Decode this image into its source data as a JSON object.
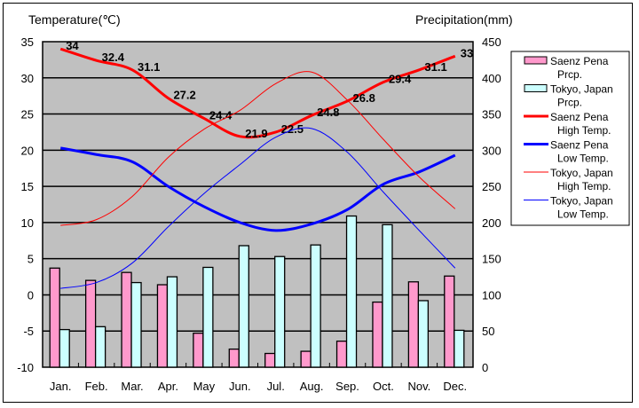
{
  "chart_data": {
    "type": "bar+line",
    "title": "",
    "left_axis_label": "Temperature(℃)",
    "right_axis_label": "Precipitation(mm)",
    "categories": [
      "Jan.",
      "Feb.",
      "Mar.",
      "Apr.",
      "May",
      "Jun.",
      "Jul.",
      "Aug.",
      "Sep.",
      "Oct.",
      "Nov.",
      "Dec."
    ],
    "left_ylim": [
      -10,
      35
    ],
    "left_ticks": [
      35,
      30,
      25,
      20,
      15,
      10,
      5,
      0,
      -5,
      -10
    ],
    "right_ylim": [
      0,
      450
    ],
    "right_ticks": [
      450,
      400,
      350,
      300,
      250,
      200,
      150,
      100,
      50,
      0
    ],
    "grid": true,
    "legend_position": "right",
    "series": [
      {
        "name": "Saenz Pena Prcp.",
        "legend": [
          "Saenz Pena",
          "Prcp."
        ],
        "type": "bar",
        "axis": "right",
        "color": "#ff99cc",
        "values": [
          137,
          120,
          131,
          114,
          47,
          25,
          19,
          22,
          36,
          90,
          118,
          126
        ]
      },
      {
        "name": "Tokyo, Japan Prcp.",
        "legend": [
          "Tokyo, Japan",
          "Prcp."
        ],
        "type": "bar",
        "axis": "right",
        "color": "#ccffff",
        "values": [
          52,
          56,
          117,
          125,
          138,
          168,
          153,
          169,
          209,
          197,
          92,
          51
        ]
      },
      {
        "name": "Saenz Pena High Temp.",
        "legend": [
          "Saenz Pena",
          "High Temp."
        ],
        "type": "line",
        "axis": "left",
        "color": "#ff0000",
        "width": 3,
        "labels": true,
        "values": [
          34,
          32.4,
          31.1,
          27.2,
          24.4,
          21.9,
          22.5,
          24.8,
          26.8,
          29.4,
          31.1,
          33
        ]
      },
      {
        "name": "Saenz Pena Low Temp.",
        "legend": [
          "Saenz Pena",
          "Low Temp."
        ],
        "type": "line",
        "axis": "left",
        "color": "#0000ff",
        "width": 3,
        "values": [
          20.3,
          19.4,
          18.4,
          15.0,
          12.2,
          10.0,
          8.9,
          9.8,
          11.8,
          15.3,
          17.0,
          19.3
        ]
      },
      {
        "name": "Tokyo, Japan High Temp.",
        "legend": [
          "Tokyo, Japan",
          "High Temp."
        ],
        "type": "line",
        "axis": "left",
        "color": "#ff0000",
        "width": 1,
        "values": [
          9.6,
          10.4,
          13.6,
          19.0,
          22.9,
          25.5,
          29.2,
          30.8,
          26.9,
          21.5,
          16.3,
          11.9
        ]
      },
      {
        "name": "Tokyo, Japan Low Temp.",
        "legend": [
          "Tokyo, Japan",
          "Low Temp."
        ],
        "type": "line",
        "axis": "left",
        "color": "#0000ff",
        "width": 1,
        "values": [
          0.9,
          1.7,
          4.4,
          9.4,
          14.0,
          18.0,
          21.8,
          23.0,
          19.7,
          14.2,
          8.9,
          3.7
        ]
      }
    ]
  }
}
